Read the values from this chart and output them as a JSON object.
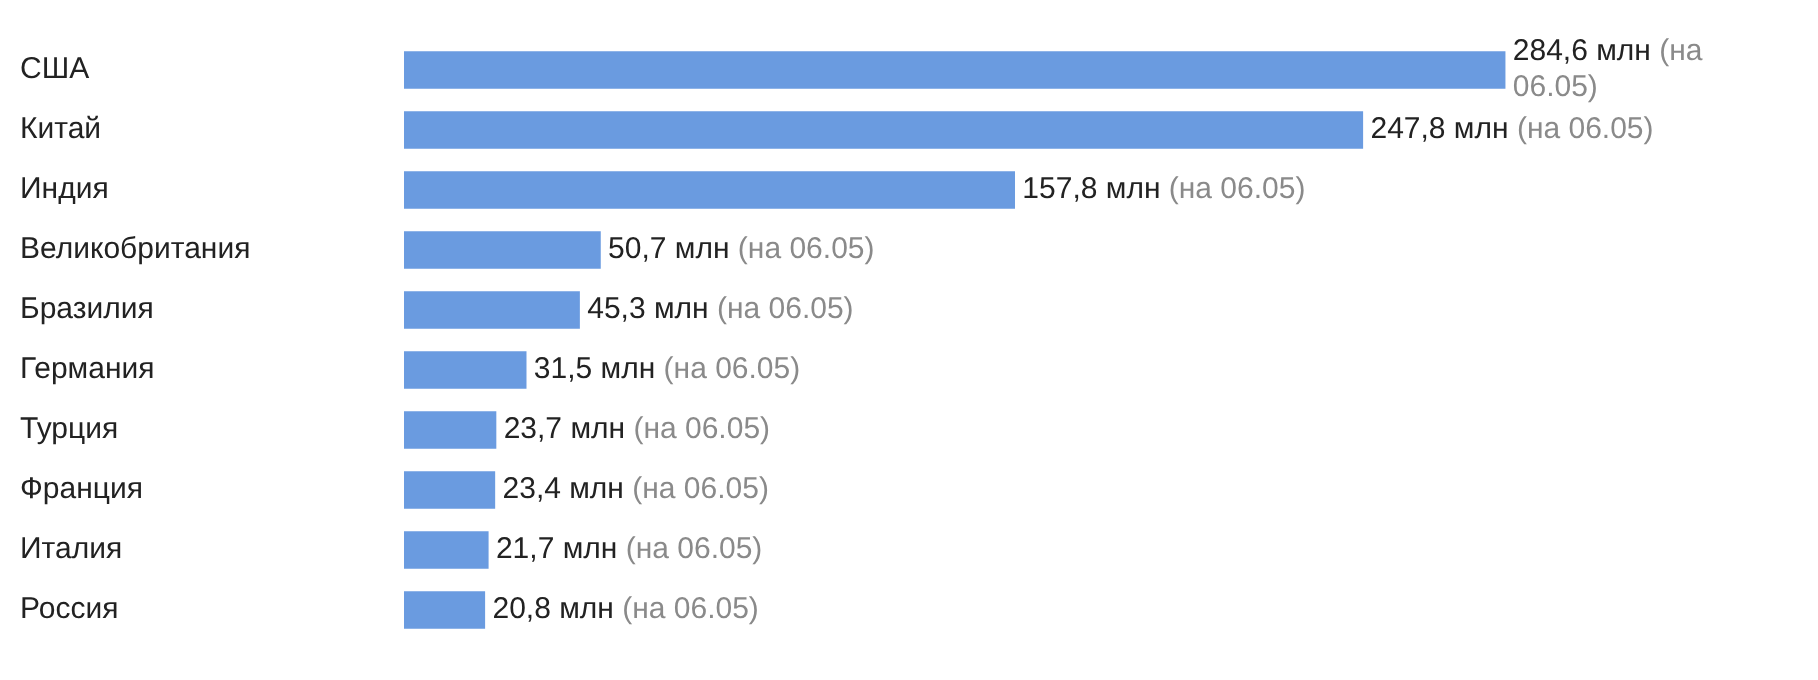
{
  "chart_data": {
    "type": "bar",
    "orientation": "horizontal",
    "categories": [
      "США",
      "Китай",
      "Индия",
      "Великобритания",
      "Бразилия",
      "Германия",
      "Турция",
      "Франция",
      "Италия",
      "Россия"
    ],
    "values": [
      284.6,
      247.8,
      157.8,
      50.7,
      45.3,
      31.5,
      23.7,
      23.4,
      21.7,
      20.8
    ],
    "color": "#6a9be0",
    "value_labels": [
      "284,6 млн (на 06.05)",
      "247,8 млн (на 06.05)",
      "157,8 млн (на 06.05)",
      "50,7 млн (на 06.05)",
      "45,3 млн (на 06.05)",
      "31,5 млн (на 06.05)",
      "23,7 млн (на 06.05)",
      "23,4 млн (на 06.05)",
      "21,7 млн (на 06.05)",
      "20,8 млн (на 06.05)"
    ]
  }
}
